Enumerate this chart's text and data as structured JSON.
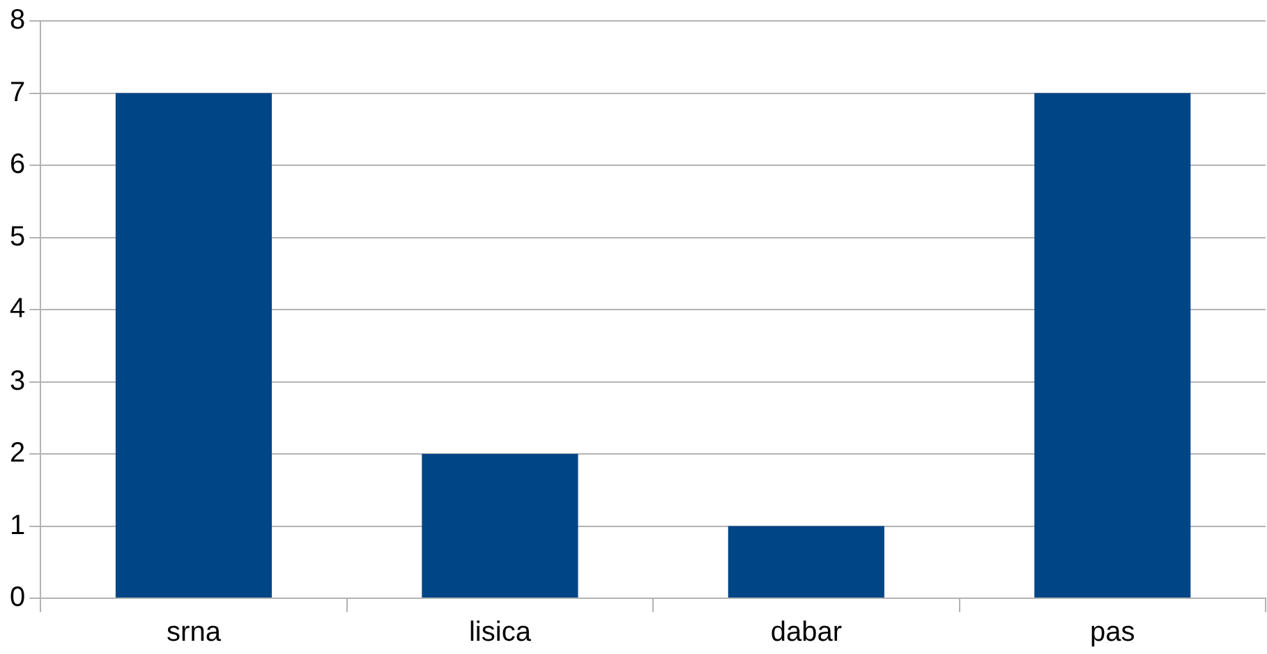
{
  "chart_data": {
    "type": "bar",
    "categories": [
      "srna",
      "lisica",
      "dabar",
      "pas"
    ],
    "values": [
      7,
      2,
      1,
      7
    ],
    "color": "#004586",
    "ylim": [
      0,
      8
    ],
    "yticks": [
      0,
      1,
      2,
      3,
      4,
      5,
      6,
      7,
      8
    ],
    "grid": "y",
    "legend": false
  }
}
